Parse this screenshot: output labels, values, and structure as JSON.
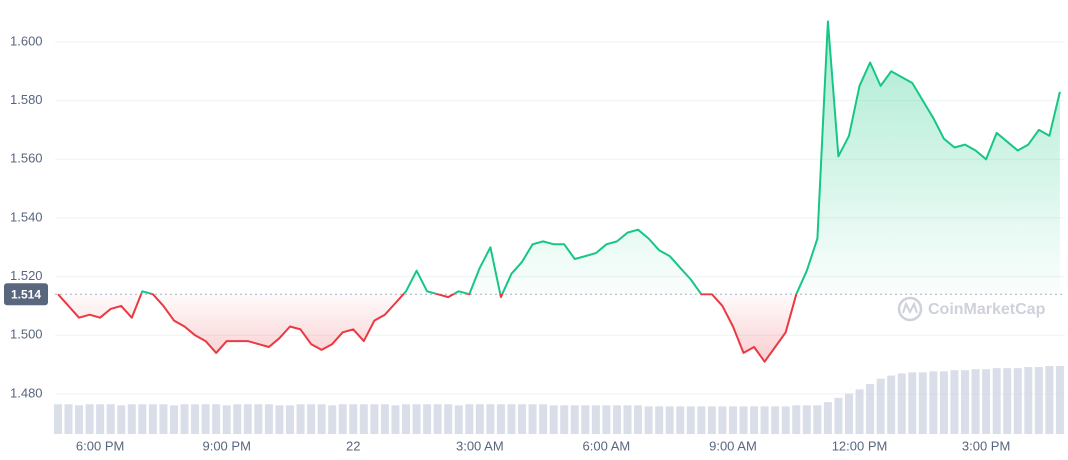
{
  "chart_data": {
    "type": "line",
    "x": [
      17,
      17.25,
      17.5,
      17.75,
      18,
      18.25,
      18.5,
      18.75,
      19,
      19.25,
      19.5,
      19.75,
      20,
      20.25,
      20.5,
      20.75,
      21,
      21.25,
      21.5,
      21.75,
      22,
      22.25,
      22.5,
      22.75,
      23,
      23.25,
      23.5,
      23.75,
      24,
      24.25,
      24.5,
      24.75,
      25,
      25.25,
      25.5,
      25.75,
      26,
      26.25,
      26.5,
      26.75,
      27,
      27.25,
      27.5,
      27.75,
      28,
      28.25,
      28.5,
      28.75,
      29,
      29.25,
      29.5,
      29.75,
      30,
      30.25,
      30.5,
      30.75,
      31,
      31.25,
      31.5,
      31.75,
      32,
      32.25,
      32.5,
      32.75,
      33,
      33.25,
      33.5,
      33.75,
      34,
      34.25,
      34.5,
      34.75,
      35,
      35.25,
      35.5,
      35.75,
      36,
      36.25,
      36.5,
      36.75,
      37,
      37.25,
      37.5,
      37.75,
      38,
      38.25,
      38.5,
      38.75,
      39,
      39.25,
      39.5,
      39.75,
      40,
      40.25,
      40.5,
      40.75
    ],
    "values": [
      1.514,
      1.51,
      1.506,
      1.507,
      1.506,
      1.509,
      1.51,
      1.506,
      1.515,
      1.514,
      1.51,
      1.505,
      1.503,
      1.5,
      1.498,
      1.494,
      1.498,
      1.498,
      1.498,
      1.497,
      1.496,
      1.499,
      1.503,
      1.502,
      1.497,
      1.495,
      1.497,
      1.501,
      1.502,
      1.498,
      1.505,
      1.507,
      1.511,
      1.515,
      1.522,
      1.515,
      1.514,
      1.513,
      1.515,
      1.514,
      1.523,
      1.53,
      1.513,
      1.521,
      1.525,
      1.531,
      1.532,
      1.531,
      1.531,
      1.526,
      1.527,
      1.528,
      1.531,
      1.532,
      1.535,
      1.536,
      1.533,
      1.529,
      1.527,
      1.523,
      1.519,
      1.514,
      1.514,
      1.51,
      1.503,
      1.494,
      1.496,
      1.491,
      1.496,
      1.501,
      1.514,
      1.522,
      1.533,
      1.607,
      1.561,
      1.568,
      1.585,
      1.593,
      1.585,
      1.59,
      1.588,
      1.586,
      1.58,
      1.574,
      1.567,
      1.564,
      1.565,
      1.563,
      1.56,
      1.569,
      1.566,
      1.563,
      1.565,
      1.57,
      1.568,
      1.583
    ],
    "volume": [
      28,
      28,
      27,
      28,
      28,
      28,
      27,
      28,
      28,
      28,
      28,
      27,
      28,
      28,
      28,
      28,
      27,
      28,
      28,
      28,
      28,
      27,
      27,
      28,
      28,
      28,
      27,
      28,
      28,
      28,
      28,
      28,
      27,
      28,
      28,
      28,
      28,
      28,
      27,
      28,
      28,
      28,
      28,
      28,
      28,
      28,
      28,
      27,
      27,
      27,
      27,
      27,
      27,
      27,
      27,
      27,
      26,
      26,
      26,
      26,
      26,
      26,
      26,
      26,
      26,
      26,
      26,
      26,
      26,
      26,
      27,
      27,
      27,
      30,
      34,
      38,
      42,
      47,
      52,
      55,
      57,
      58,
      58,
      59,
      59,
      60,
      60,
      61,
      61,
      62,
      62,
      62,
      63,
      63,
      64,
      64
    ],
    "baseline": {
      "value": 1.514,
      "label": "1.514"
    },
    "up_color": "#16c784",
    "down_color": "#ea3943",
    "volume_color": "#cfd6e4",
    "xlim": [
      16.93,
      40.87
    ],
    "ylim": [
      1.4677,
      1.6143
    ],
    "yticks": [
      {
        "value": 1.48,
        "label": "1.480"
      },
      {
        "value": 1.5,
        "label": "1.500"
      },
      {
        "value": 1.52,
        "label": "1.520"
      },
      {
        "value": 1.54,
        "label": "1.540"
      },
      {
        "value": 1.56,
        "label": "1.560"
      },
      {
        "value": 1.58,
        "label": "1.580"
      },
      {
        "value": 1.6,
        "label": "1.600"
      }
    ],
    "xticks": [
      {
        "value": 18,
        "label": "6:00 PM"
      },
      {
        "value": 21,
        "label": "9:00 PM"
      },
      {
        "value": 24,
        "label": "22"
      },
      {
        "value": 27,
        "label": "3:00 AM"
      },
      {
        "value": 30,
        "label": "6:00 AM"
      },
      {
        "value": 33,
        "label": "9:00 AM"
      },
      {
        "value": 36,
        "label": "12:00 PM"
      },
      {
        "value": 39,
        "label": "3:00 PM"
      }
    ],
    "grid": true,
    "watermark": "CoinMarketCap"
  }
}
